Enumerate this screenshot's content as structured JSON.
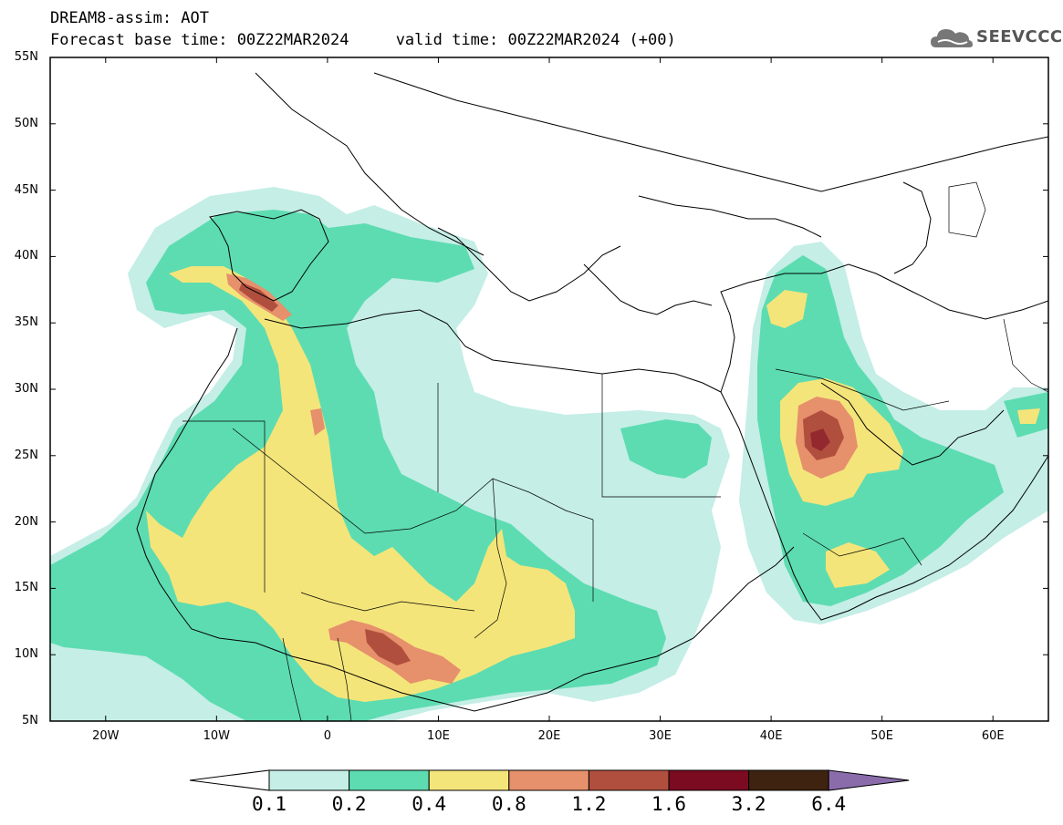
{
  "header": {
    "line1": "DREAM8-assim: AOT",
    "line2": "Forecast base time: 00Z22MAR2024     valid time: 00Z22MAR2024 (+00)"
  },
  "logo": {
    "text": "SEEVCCC",
    "icon": "cloud-icon"
  },
  "map": {
    "lon_range": [
      -25,
      65
    ],
    "lat_range": [
      5,
      55
    ],
    "lat_ticks": [
      "55N",
      "50N",
      "45N",
      "40N",
      "35N",
      "30N",
      "25N",
      "20N",
      "15N",
      "10N",
      "5N"
    ],
    "lon_ticks": [
      "20W",
      "10W",
      "0",
      "10E",
      "20E",
      "30E",
      "40E",
      "50E",
      "60E"
    ]
  },
  "colorbar": {
    "levels": [
      "0.1",
      "0.2",
      "0.4",
      "0.8",
      "1.2",
      "1.6",
      "3.2",
      "6.4"
    ],
    "colors": [
      "#c4eee6",
      "#5ddcb1",
      "#f4e57a",
      "#e6906c",
      "#b14f3e",
      "#7a0b21",
      "#3e2310",
      "#8b6cab"
    ],
    "under_color": "#ffffff"
  }
}
